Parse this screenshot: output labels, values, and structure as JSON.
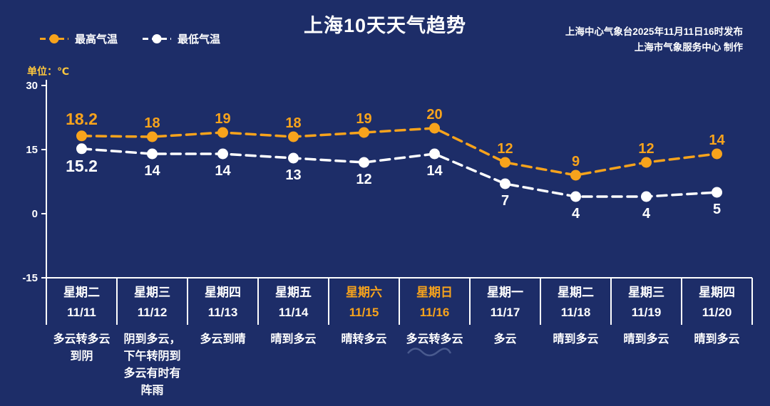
{
  "header": {
    "title": "上海10天天气趋势",
    "source_line1": "上海中心气象台2025年11月11日16时发布",
    "source_line2": "上海市气象服务中心  制作"
  },
  "legend": {
    "max_label": "最高气温",
    "min_label": "最低气温"
  },
  "unit_label": "单位：℃",
  "colors": {
    "accent": "#f7a31c",
    "min_series": "#ffffff",
    "background": "#1d2d68",
    "axis": "#ffffff",
    "text": "#ffffff",
    "unit": "#ffc83d"
  },
  "chart_data": {
    "type": "line",
    "x": [
      "11/11",
      "11/12",
      "11/13",
      "11/14",
      "11/15",
      "11/16",
      "11/17",
      "11/18",
      "11/19",
      "11/20"
    ],
    "weekdays": [
      "星期二",
      "星期三",
      "星期四",
      "星期五",
      "星期六",
      "星期日",
      "星期一",
      "星期二",
      "星期三",
      "星期四"
    ],
    "weekend_indices": [
      4,
      5
    ],
    "series": [
      {
        "name": "最高气温",
        "values": [
          18.2,
          18,
          19,
          18,
          19,
          20,
          12,
          9,
          12,
          14
        ],
        "color": "#f7a31c"
      },
      {
        "name": "最低气温",
        "values": [
          15.2,
          14,
          14,
          13,
          12,
          14,
          7,
          4,
          4,
          5
        ],
        "color": "#ffffff"
      }
    ],
    "ylim": [
      -15,
      30
    ],
    "yticks": [
      30,
      15,
      0,
      -15
    ],
    "grid": false,
    "legend_position": "top-left",
    "title": "上海10天天气趋势",
    "xlabel": "",
    "ylabel": "单位：℃",
    "weather": [
      "多云转多云\n到阴",
      "阴到多云，\n下午转阴到\n多云有时有\n阵雨",
      "多云到晴",
      "晴到多云",
      "晴转多云",
      "多云转多云",
      "多云",
      "晴到多云",
      "晴到多云",
      "晴到多云"
    ]
  }
}
